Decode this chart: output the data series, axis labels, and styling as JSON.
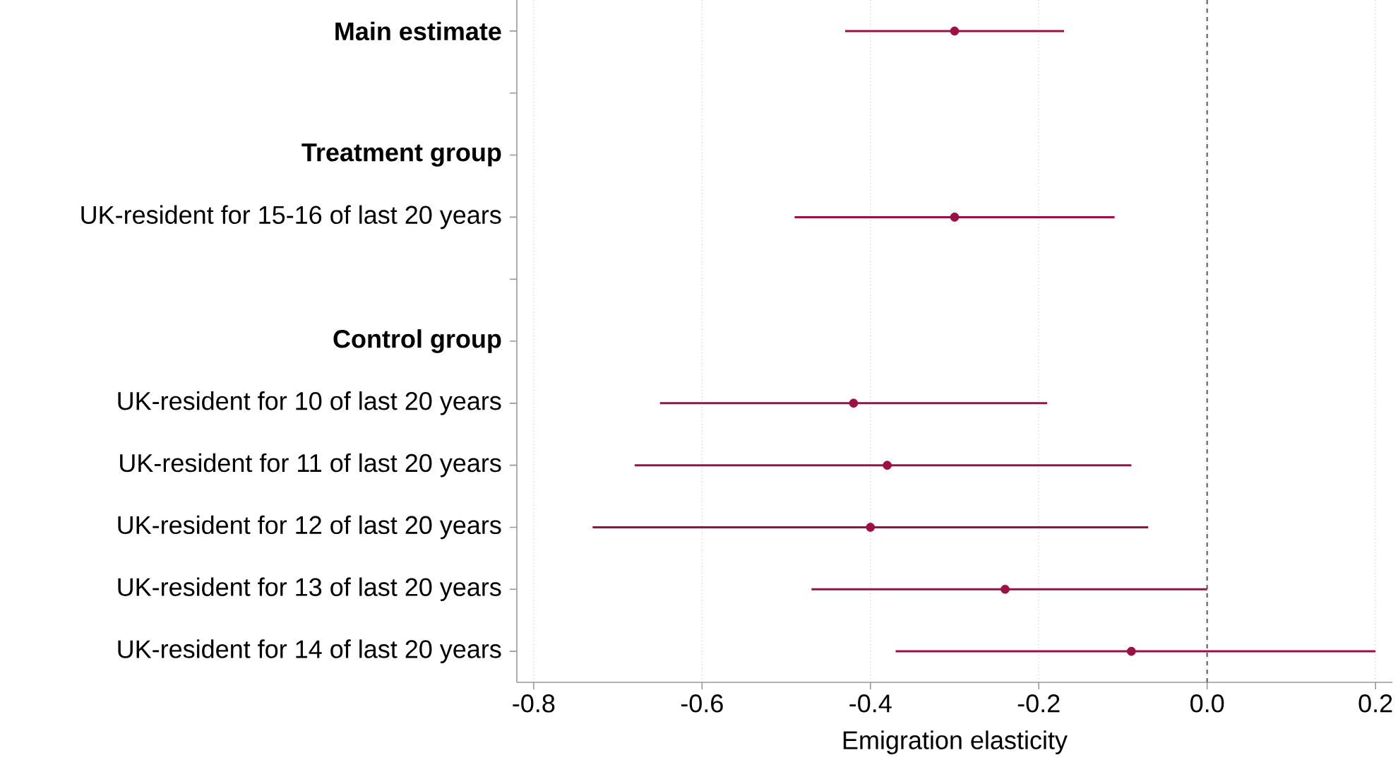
{
  "chart_data": {
    "type": "scatter",
    "orientation": "horizontal",
    "xlabel": "Emigration elasticity",
    "categories": [
      "**Main estimate**",
      null,
      "**Treatment group**",
      "UK-resident for 15-16 of last 20 years",
      null,
      "**Control group**",
      "UK-resident for 10 of last 20 years",
      "UK-resident for 11 of last 20 years",
      "UK-resident for 12 of last 20 years",
      "UK-resident for 13 of last 20 years",
      "UK-resident for 14 of last 20 years"
    ],
    "values": [
      -0.3,
      null,
      null,
      -0.3,
      null,
      null,
      -0.42,
      -0.38,
      -0.4,
      -0.24,
      -0.09
    ],
    "errors": [
      [
        -0.43,
        -0.17
      ],
      null,
      null,
      [
        -0.49,
        -0.11
      ],
      null,
      null,
      [
        -0.65,
        -0.19
      ],
      [
        -0.68,
        -0.09
      ],
      [
        -0.73,
        -0.07
      ],
      [
        -0.47,
        0.0
      ],
      [
        -0.37,
        0.2
      ]
    ],
    "color": "#9b1045",
    "marker": "circle",
    "xlim": [
      -0.82,
      0.22
    ],
    "xticks": [
      -0.8,
      -0.6,
      -0.4,
      -0.2,
      {
        "value": 0,
        "label": "0.0"
      },
      0.2
    ],
    "grid": "x",
    "ref_lines": [
      {
        "axis": "x",
        "value": 0,
        "color": "#707070",
        "line_style": "dashed"
      }
    ]
  }
}
